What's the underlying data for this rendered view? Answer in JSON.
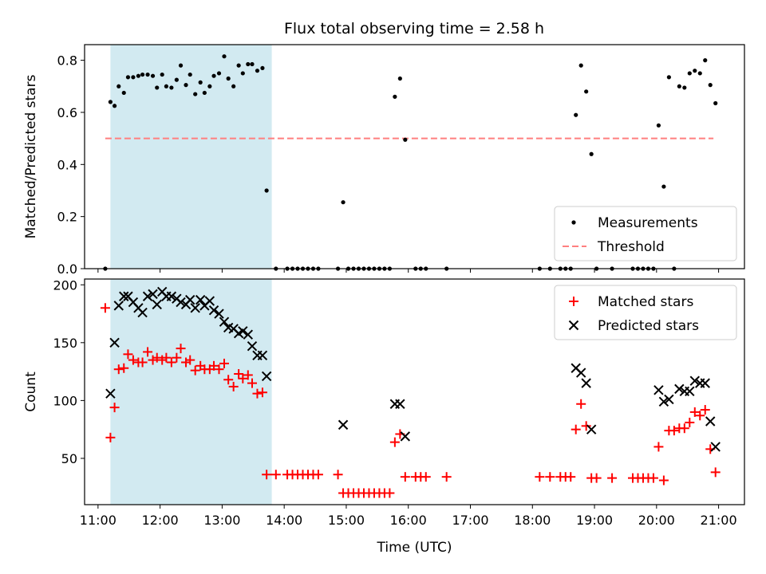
{
  "title": "Flux total observing time = 2.58 h",
  "colors": {
    "highlight": "#add8e6",
    "threshold": "#ff7f7f",
    "matched": "#ff0000",
    "predicted": "#000000",
    "measurement": "#000000"
  },
  "chart_data": [
    {
      "type": "scatter",
      "ylabel": "Matched/Predicted stars",
      "xlim": [
        "10:47",
        "21:25"
      ],
      "ylim": [
        0,
        0.86
      ],
      "yticks": [
        "0.0",
        "0.2",
        "0.4",
        "0.6",
        "0.8"
      ],
      "highlight_span": [
        "11:12",
        "13:48"
      ],
      "legend": {
        "position": "lower-right",
        "entries": [
          "Measurements",
          "Threshold"
        ]
      },
      "threshold": {
        "name": "Threshold",
        "value": 0.5,
        "x_range": [
          "11:07",
          "20:55"
        ]
      },
      "series": [
        {
          "name": "Measurements",
          "points": [
            [
              "11:07",
              0.0
            ],
            [
              "11:12",
              0.64
            ],
            [
              "11:16",
              0.625
            ],
            [
              "11:20",
              0.7
            ],
            [
              "11:25",
              0.675
            ],
            [
              "11:29",
              0.735
            ],
            [
              "11:34",
              0.735
            ],
            [
              "11:39",
              0.74
            ],
            [
              "11:43",
              0.745
            ],
            [
              "11:48",
              0.745
            ],
            [
              "11:53",
              0.74
            ],
            [
              "11:57",
              0.695
            ],
            [
              "12:02",
              0.745
            ],
            [
              "12:06",
              0.7
            ],
            [
              "12:11",
              0.695
            ],
            [
              "12:16",
              0.725
            ],
            [
              "12:20",
              0.78
            ],
            [
              "12:25",
              0.705
            ],
            [
              "12:29",
              0.745
            ],
            [
              "12:34",
              0.67
            ],
            [
              "12:39",
              0.715
            ],
            [
              "12:43",
              0.675
            ],
            [
              "12:48",
              0.7
            ],
            [
              "12:52",
              0.74
            ],
            [
              "12:57",
              0.75
            ],
            [
              "13:02",
              0.815
            ],
            [
              "13:06",
              0.73
            ],
            [
              "13:11",
              0.7
            ],
            [
              "13:16",
              0.78
            ],
            [
              "13:20",
              0.75
            ],
            [
              "13:25",
              0.785
            ],
            [
              "13:29",
              0.785
            ],
            [
              "13:34",
              0.76
            ],
            [
              "13:39",
              0.77
            ],
            [
              "13:43",
              0.3
            ],
            [
              "13:52",
              0.0
            ],
            [
              "14:03",
              0.0
            ],
            [
              "14:08",
              0.0
            ],
            [
              "14:13",
              0.0
            ],
            [
              "14:18",
              0.0
            ],
            [
              "14:23",
              0.0
            ],
            [
              "14:28",
              0.0
            ],
            [
              "14:33",
              0.0
            ],
            [
              "14:52",
              0.0
            ],
            [
              "14:57",
              0.255
            ],
            [
              "15:02",
              0.0
            ],
            [
              "15:07",
              0.0
            ],
            [
              "15:12",
              0.0
            ],
            [
              "15:17",
              0.0
            ],
            [
              "15:22",
              0.0
            ],
            [
              "15:27",
              0.0
            ],
            [
              "15:32",
              0.0
            ],
            [
              "15:37",
              0.0
            ],
            [
              "15:42",
              0.0
            ],
            [
              "15:47",
              0.66
            ],
            [
              "15:52",
              0.73
            ],
            [
              "15:57",
              0.495
            ],
            [
              "16:07",
              0.0
            ],
            [
              "16:12",
              0.0
            ],
            [
              "16:17",
              0.0
            ],
            [
              "16:37",
              0.0
            ],
            [
              "18:07",
              0.0
            ],
            [
              "18:17",
              0.0
            ],
            [
              "18:27",
              0.0
            ],
            [
              "18:32",
              0.0
            ],
            [
              "18:37",
              0.0
            ],
            [
              "18:42",
              0.59
            ],
            [
              "18:47",
              0.78
            ],
            [
              "18:52",
              0.68
            ],
            [
              "18:57",
              0.44
            ],
            [
              "19:02",
              0.0
            ],
            [
              "19:17",
              0.0
            ],
            [
              "19:37",
              0.0
            ],
            [
              "19:42",
              0.0
            ],
            [
              "19:47",
              0.0
            ],
            [
              "19:52",
              0.0
            ],
            [
              "19:57",
              0.0
            ],
            [
              "20:02",
              0.55
            ],
            [
              "20:07",
              0.315
            ],
            [
              "20:12",
              0.735
            ],
            [
              "20:17",
              0.0
            ],
            [
              "20:22",
              0.7
            ],
            [
              "20:27",
              0.695
            ],
            [
              "20:32",
              0.75
            ],
            [
              "20:37",
              0.76
            ],
            [
              "20:42",
              0.75
            ],
            [
              "20:47",
              0.8
            ],
            [
              "20:52",
              0.705
            ],
            [
              "20:57",
              0.635
            ]
          ]
        }
      ]
    },
    {
      "type": "scatter",
      "ylabel": "Count",
      "xlabel": "Time (UTC)",
      "xlim": [
        "10:47",
        "21:25"
      ],
      "ylim": [
        10,
        205
      ],
      "yticks": [
        "50",
        "100",
        "150",
        "200"
      ],
      "xticks": [
        "11:00",
        "12:00",
        "13:00",
        "14:00",
        "15:00",
        "16:00",
        "17:00",
        "18:00",
        "19:00",
        "20:00",
        "21:00"
      ],
      "highlight_span": [
        "11:12",
        "13:48"
      ],
      "legend": {
        "position": "top-right",
        "entries": [
          "Matched stars",
          "Predicted stars"
        ]
      },
      "series": [
        {
          "name": "Matched stars",
          "points": [
            [
              "11:07",
              180
            ],
            [
              "11:12",
              68
            ],
            [
              "11:16",
              94
            ],
            [
              "11:20",
              127
            ],
            [
              "11:25",
              128
            ],
            [
              "11:29",
              140
            ],
            [
              "11:34",
              135
            ],
            [
              "11:39",
              133
            ],
            [
              "11:43",
              133
            ],
            [
              "11:48",
              142
            ],
            [
              "11:53",
              135
            ],
            [
              "11:57",
              137
            ],
            [
              "12:02",
              135
            ],
            [
              "12:06",
              137
            ],
            [
              "12:11",
              133
            ],
            [
              "12:16",
              137
            ],
            [
              "12:20",
              145
            ],
            [
              "12:25",
              133
            ],
            [
              "12:29",
              135
            ],
            [
              "12:34",
              126
            ],
            [
              "12:39",
              130
            ],
            [
              "12:43",
              127
            ],
            [
              "12:48",
              127
            ],
            [
              "12:52",
              130
            ],
            [
              "12:57",
              127
            ],
            [
              "13:02",
              132
            ],
            [
              "13:06",
              118
            ],
            [
              "13:11",
              112
            ],
            [
              "13:16",
              123
            ],
            [
              "13:20",
              119
            ],
            [
              "13:25",
              122
            ],
            [
              "13:29",
              115
            ],
            [
              "13:34",
              106
            ],
            [
              "13:39",
              107
            ],
            [
              "13:43",
              36
            ],
            [
              "13:52",
              36
            ],
            [
              "14:03",
              36
            ],
            [
              "14:08",
              36
            ],
            [
              "14:13",
              36
            ],
            [
              "14:18",
              36
            ],
            [
              "14:23",
              36
            ],
            [
              "14:28",
              36
            ],
            [
              "14:33",
              36
            ],
            [
              "14:52",
              36
            ],
            [
              "14:57",
              20
            ],
            [
              "15:02",
              20
            ],
            [
              "15:07",
              20
            ],
            [
              "15:12",
              20
            ],
            [
              "15:17",
              20
            ],
            [
              "15:22",
              20
            ],
            [
              "15:27",
              20
            ],
            [
              "15:32",
              20
            ],
            [
              "15:37",
              20
            ],
            [
              "15:42",
              20
            ],
            [
              "15:47",
              64
            ],
            [
              "15:52",
              71
            ],
            [
              "15:57",
              34
            ],
            [
              "16:07",
              34
            ],
            [
              "16:12",
              34
            ],
            [
              "16:17",
              34
            ],
            [
              "16:37",
              34
            ],
            [
              "18:07",
              34
            ],
            [
              "18:17",
              34
            ],
            [
              "18:27",
              34
            ],
            [
              "18:32",
              34
            ],
            [
              "18:37",
              34
            ],
            [
              "18:42",
              75
            ],
            [
              "18:47",
              97
            ],
            [
              "18:52",
              78
            ],
            [
              "18:57",
              33
            ],
            [
              "19:02",
              33
            ],
            [
              "19:17",
              33
            ],
            [
              "19:37",
              33
            ],
            [
              "19:42",
              33
            ],
            [
              "19:47",
              33
            ],
            [
              "19:52",
              33
            ],
            [
              "19:57",
              33
            ],
            [
              "20:02",
              60
            ],
            [
              "20:07",
              31
            ],
            [
              "20:12",
              74
            ],
            [
              "20:17",
              74
            ],
            [
              "20:22",
              76
            ],
            [
              "20:27",
              76
            ],
            [
              "20:32",
              81
            ],
            [
              "20:37",
              90
            ],
            [
              "20:42",
              87
            ],
            [
              "20:47",
              92
            ],
            [
              "20:52",
              58
            ],
            [
              "20:57",
              38
            ]
          ]
        },
        {
          "name": "Predicted stars",
          "points": [
            [
              "11:12",
              106
            ],
            [
              "11:16",
              150
            ],
            [
              "11:20",
              182
            ],
            [
              "11:25",
              190
            ],
            [
              "11:29",
              190
            ],
            [
              "11:34",
              185
            ],
            [
              "11:39",
              180
            ],
            [
              "11:43",
              176
            ],
            [
              "11:48",
              190
            ],
            [
              "11:53",
              192
            ],
            [
              "11:57",
              183
            ],
            [
              "12:02",
              194
            ],
            [
              "12:06",
              190
            ],
            [
              "12:11",
              190
            ],
            [
              "12:16",
              188
            ],
            [
              "12:20",
              185
            ],
            [
              "12:25",
              183
            ],
            [
              "12:29",
              187
            ],
            [
              "12:34",
              180
            ],
            [
              "12:39",
              187
            ],
            [
              "12:43",
              182
            ],
            [
              "12:48",
              186
            ],
            [
              "12:52",
              178
            ],
            [
              "12:57",
              175
            ],
            [
              "13:02",
              168
            ],
            [
              "13:06",
              163
            ],
            [
              "13:11",
              162
            ],
            [
              "13:16",
              158
            ],
            [
              "13:20",
              160
            ],
            [
              "13:25",
              157
            ],
            [
              "13:29",
              147
            ],
            [
              "13:34",
              139
            ],
            [
              "13:39",
              139
            ],
            [
              "13:43",
              121
            ],
            [
              "14:57",
              79
            ],
            [
              "15:47",
              97
            ],
            [
              "15:52",
              97
            ],
            [
              "15:57",
              69
            ],
            [
              "18:42",
              128
            ],
            [
              "18:47",
              124
            ],
            [
              "18:52",
              115
            ],
            [
              "18:57",
              75
            ],
            [
              "20:02",
              109
            ],
            [
              "20:07",
              99
            ],
            [
              "20:12",
              101
            ],
            [
              "20:22",
              110
            ],
            [
              "20:27",
              108
            ],
            [
              "20:32",
              108
            ],
            [
              "20:37",
              117
            ],
            [
              "20:42",
              115
            ],
            [
              "20:47",
              115
            ],
            [
              "20:52",
              82
            ],
            [
              "20:57",
              60
            ]
          ]
        }
      ]
    }
  ]
}
